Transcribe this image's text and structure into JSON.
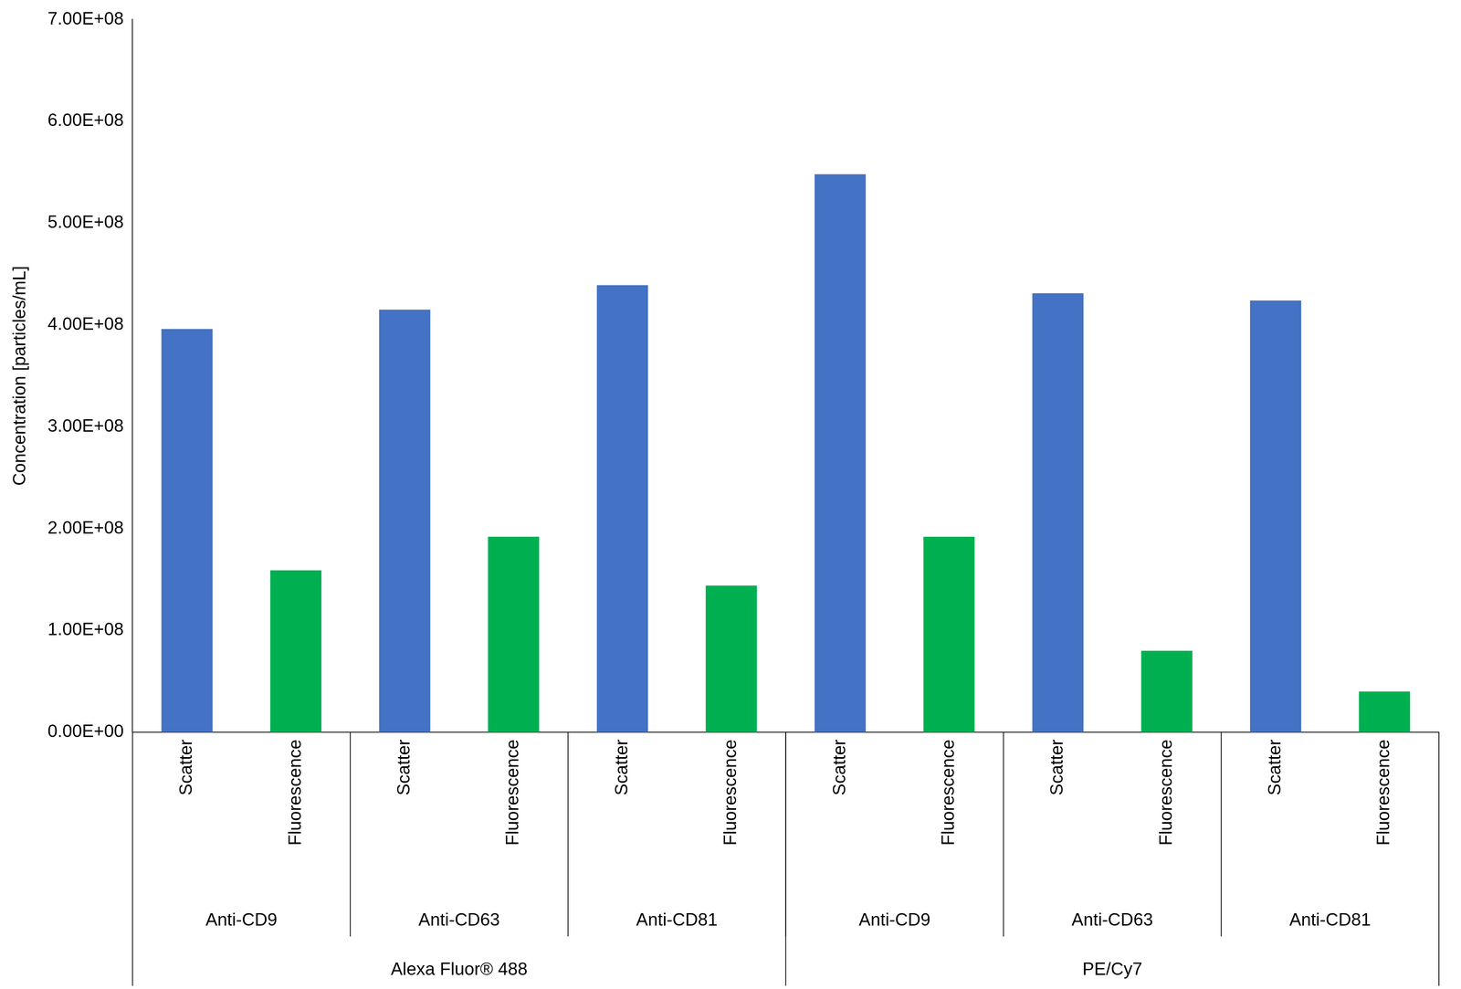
{
  "chart_data": {
    "type": "bar",
    "y_label": "Concentration [particles/mL]",
    "categories": [
      [
        "Scatter",
        "Anti-CD9",
        "Alexa Fluor® 488"
      ],
      [
        "Fluorescence",
        "Anti-CD9",
        "Alexa Fluor® 488"
      ],
      [
        "Scatter",
        "Anti-CD63",
        "Alexa Fluor® 488"
      ],
      [
        "Fluorescence",
        "Anti-CD63",
        "Alexa Fluor® 488"
      ],
      [
        "Scatter",
        "Anti-CD81",
        "Alexa Fluor® 488"
      ],
      [
        "Fluorescence",
        "Anti-CD81",
        "Alexa Fluor® 488"
      ],
      [
        "Scatter",
        "Anti-CD9",
        "PE/Cy7"
      ],
      [
        "Fluorescence",
        "Anti-CD9",
        "PE/Cy7"
      ],
      [
        "Scatter",
        "Anti-CD63",
        "PE/Cy7"
      ],
      [
        "Fluorescence",
        "Anti-CD63",
        "PE/Cy7"
      ],
      [
        "Scatter",
        "Anti-CD81",
        "PE/Cy7"
      ],
      [
        "Fluorescence",
        "Anti-CD81",
        "PE/Cy7"
      ]
    ],
    "values": [
      396000000,
      159000000,
      415000000,
      192000000,
      439000000,
      144000000,
      548000000,
      192000000,
      431000000,
      80000000,
      424000000,
      40000000
    ],
    "colors": [
      "#4472c4",
      "#00b050",
      "#4472c4",
      "#00b050",
      "#4472c4",
      "#00b050",
      "#4472c4",
      "#00b050",
      "#4472c4",
      "#00b050",
      "#4472c4",
      "#00b050"
    ],
    "ylim": [
      0,
      700000000
    ],
    "yticks": [
      {
        "value": 0,
        "label": "0.00E+00"
      },
      {
        "value": 100000000,
        "label": "1.00E+08"
      },
      {
        "value": 200000000,
        "label": "2.00E+08"
      },
      {
        "value": 300000000,
        "label": "3.00E+08"
      },
      {
        "value": 400000000,
        "label": "4.00E+08"
      },
      {
        "value": 500000000,
        "label": "5.00E+08"
      },
      {
        "value": 600000000,
        "label": "6.00E+08"
      },
      {
        "value": 700000000,
        "label": "7.00E+08"
      }
    ],
    "grid": false
  }
}
